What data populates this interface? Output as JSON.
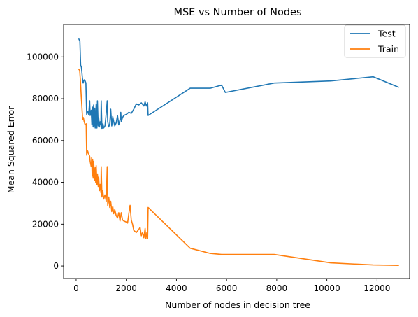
{
  "chart_data": {
    "type": "line",
    "title": "MSE vs Number of Nodes",
    "xlabel": "Number of nodes in decision tree",
    "ylabel": "Mean Squared Error",
    "xlim": [
      -500,
      13300
    ],
    "ylim": [
      -6000,
      115500
    ],
    "xticks": [
      0,
      2000,
      4000,
      6000,
      8000,
      10000,
      12000
    ],
    "yticks": [
      0,
      20000,
      40000,
      60000,
      80000,
      100000
    ],
    "grid": false,
    "legend": {
      "placement": "top-right"
    },
    "series": [
      {
        "name": "Test",
        "color": "#1f77b4",
        "points": [
          [
            110,
            108500
          ],
          [
            150,
            107500
          ],
          [
            180,
            96000
          ],
          [
            210,
            95000
          ],
          [
            250,
            90000
          ],
          [
            280,
            87500
          ],
          [
            320,
            89000
          ],
          [
            360,
            88500
          ],
          [
            390,
            87500
          ],
          [
            420,
            72500
          ],
          [
            460,
            74000
          ],
          [
            500,
            72500
          ],
          [
            540,
            79000
          ],
          [
            560,
            72000
          ],
          [
            600,
            74500
          ],
          [
            630,
            67500
          ],
          [
            650,
            76000
          ],
          [
            680,
            66500
          ],
          [
            700,
            77000
          ],
          [
            720,
            67000
          ],
          [
            740,
            75500
          ],
          [
            760,
            66000
          ],
          [
            780,
            72000
          ],
          [
            800,
            77500
          ],
          [
            830,
            66000
          ],
          [
            850,
            79000
          ],
          [
            880,
            67000
          ],
          [
            900,
            71000
          ],
          [
            930,
            66500
          ],
          [
            960,
            69000
          ],
          [
            990,
            67500
          ],
          [
            1000,
            79000
          ],
          [
            1030,
            65500
          ],
          [
            1070,
            68000
          ],
          [
            1100,
            66000
          ],
          [
            1150,
            67000
          ],
          [
            1200,
            73000
          ],
          [
            1240,
            79000
          ],
          [
            1260,
            69000
          ],
          [
            1300,
            66500
          ],
          [
            1340,
            68000
          ],
          [
            1380,
            75000
          ],
          [
            1420,
            67000
          ],
          [
            1460,
            71500
          ],
          [
            1500,
            69000
          ],
          [
            1540,
            67000
          ],
          [
            1600,
            68500
          ],
          [
            1650,
            72000
          ],
          [
            1700,
            67500
          ],
          [
            1750,
            70000
          ],
          [
            1780,
            73500
          ],
          [
            1800,
            69000
          ],
          [
            1850,
            71000
          ],
          [
            1900,
            72000
          ],
          [
            2000,
            72500
          ],
          [
            2100,
            73500
          ],
          [
            2200,
            73000
          ],
          [
            2300,
            75000
          ],
          [
            2400,
            77500
          ],
          [
            2500,
            77000
          ],
          [
            2600,
            78000
          ],
          [
            2700,
            76500
          ],
          [
            2750,
            78500
          ],
          [
            2800,
            76500
          ],
          [
            2850,
            78000
          ],
          [
            2870,
            72000
          ],
          [
            4550,
            85000
          ],
          [
            5350,
            85000
          ],
          [
            5800,
            86500
          ],
          [
            5950,
            83000
          ],
          [
            7900,
            87500
          ],
          [
            10150,
            88500
          ],
          [
            11850,
            90500
          ],
          [
            12850,
            85500
          ]
        ]
      },
      {
        "name": "Train",
        "color": "#ff7f0e",
        "points": [
          [
            110,
            94000
          ],
          [
            140,
            93500
          ],
          [
            170,
            89000
          ],
          [
            200,
            82000
          ],
          [
            230,
            76000
          ],
          [
            260,
            70000
          ],
          [
            290,
            71000
          ],
          [
            320,
            69000
          ],
          [
            360,
            67500
          ],
          [
            400,
            68000
          ],
          [
            420,
            53000
          ],
          [
            460,
            55000
          ],
          [
            500,
            53500
          ],
          [
            540,
            52500
          ],
          [
            560,
            50000
          ],
          [
            600,
            47500
          ],
          [
            620,
            52000
          ],
          [
            640,
            43000
          ],
          [
            660,
            51000
          ],
          [
            680,
            42000
          ],
          [
            700,
            50000
          ],
          [
            720,
            45000
          ],
          [
            740,
            41000
          ],
          [
            760,
            47000
          ],
          [
            780,
            40000
          ],
          [
            800,
            48000
          ],
          [
            830,
            39000
          ],
          [
            850,
            44000
          ],
          [
            880,
            38000
          ],
          [
            900,
            42500
          ],
          [
            930,
            36000
          ],
          [
            960,
            39000
          ],
          [
            990,
            35000
          ],
          [
            1000,
            47500
          ],
          [
            1030,
            33000
          ],
          [
            1060,
            36000
          ],
          [
            1100,
            32000
          ],
          [
            1150,
            34000
          ],
          [
            1200,
            31000
          ],
          [
            1240,
            47500
          ],
          [
            1260,
            29000
          ],
          [
            1300,
            33000
          ],
          [
            1340,
            28000
          ],
          [
            1380,
            31000
          ],
          [
            1420,
            26000
          ],
          [
            1460,
            28500
          ],
          [
            1500,
            25000
          ],
          [
            1540,
            27000
          ],
          [
            1600,
            24000
          ],
          [
            1650,
            23000
          ],
          [
            1700,
            25500
          ],
          [
            1750,
            21500
          ],
          [
            1800,
            25500
          ],
          [
            1850,
            22000
          ],
          [
            1900,
            21500
          ],
          [
            2000,
            21000
          ],
          [
            2050,
            20500
          ],
          [
            2100,
            25000
          ],
          [
            2150,
            29000
          ],
          [
            2200,
            22000
          ],
          [
            2250,
            20000
          ],
          [
            2300,
            17000
          ],
          [
            2400,
            16000
          ],
          [
            2500,
            17500
          ],
          [
            2550,
            18500
          ],
          [
            2600,
            14500
          ],
          [
            2650,
            16000
          ],
          [
            2700,
            13500
          ],
          [
            2750,
            18000
          ],
          [
            2780,
            13000
          ],
          [
            2820,
            16000
          ],
          [
            2850,
            13000
          ],
          [
            2870,
            28000
          ],
          [
            4550,
            8500
          ],
          [
            5350,
            6000
          ],
          [
            5800,
            5500
          ],
          [
            7900,
            5500
          ],
          [
            10150,
            1500
          ],
          [
            11850,
            500
          ],
          [
            12850,
            300
          ]
        ]
      }
    ]
  }
}
